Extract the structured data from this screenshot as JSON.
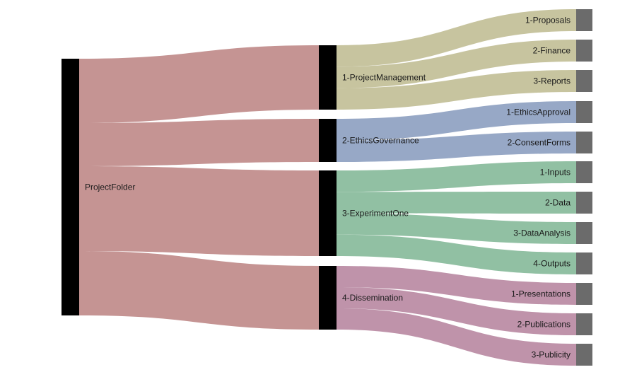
{
  "colors": {
    "root_node": "#000000",
    "mid_node": "#000000",
    "leaf_node": "#6b6b6b",
    "root_links": "#c59493",
    "project_management": "#c7c49f",
    "ethics_governance": "#97a8c6",
    "experiment_one": "#91c0a3",
    "dissemination": "#bf93aa"
  },
  "root": {
    "id": "root",
    "label": "ProjectFolder"
  },
  "groups": [
    {
      "id": "pm",
      "label": "1-ProjectManagement",
      "color_key": "project_management",
      "children": [
        {
          "id": "pm1",
          "label": "1-Proposals"
        },
        {
          "id": "pm2",
          "label": "2-Finance"
        },
        {
          "id": "pm3",
          "label": "3-Reports"
        }
      ]
    },
    {
      "id": "eg",
      "label": "2-EthicsGovernance",
      "color_key": "ethics_governance",
      "children": [
        {
          "id": "eg1",
          "label": "1-EthicsApproval"
        },
        {
          "id": "eg2",
          "label": "2-ConsentForms"
        }
      ]
    },
    {
      "id": "ex",
      "label": "3-ExperimentOne",
      "color_key": "experiment_one",
      "children": [
        {
          "id": "ex1",
          "label": "1-Inputs"
        },
        {
          "id": "ex2",
          "label": "2-Data"
        },
        {
          "id": "ex3",
          "label": "3-DataAnalysis"
        },
        {
          "id": "ex4",
          "label": "4-Outputs"
        }
      ]
    },
    {
      "id": "ds",
      "label": "4-Dissemination",
      "color_key": "dissemination",
      "children": [
        {
          "id": "ds1",
          "label": "1-Presentations"
        },
        {
          "id": "ds2",
          "label": "2-Publications"
        },
        {
          "id": "ds3",
          "label": "3-Publicity"
        }
      ]
    }
  ]
}
